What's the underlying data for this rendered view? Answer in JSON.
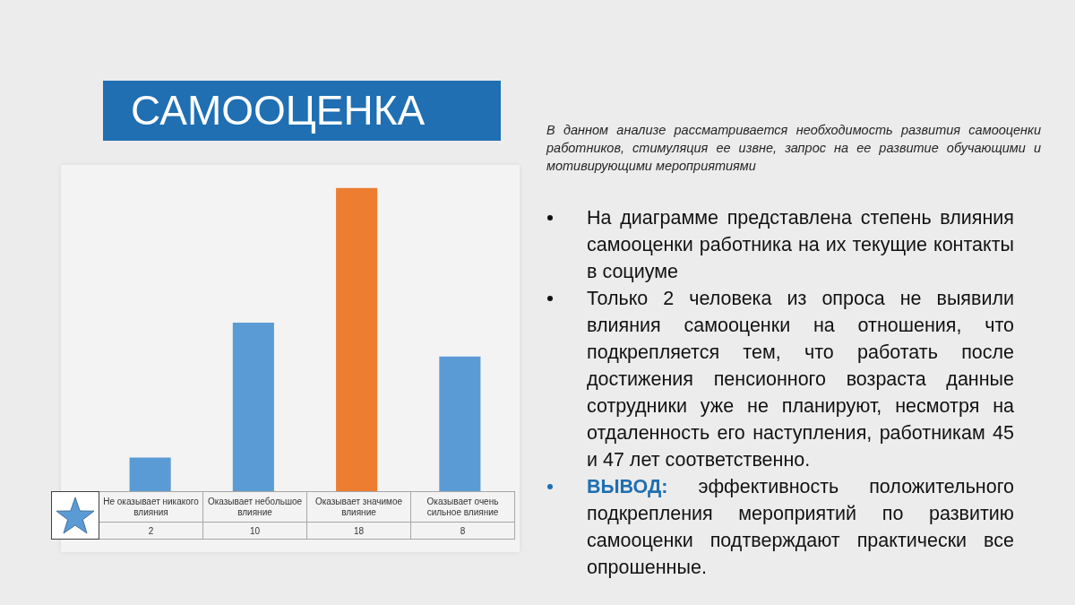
{
  "chart_data": {
    "type": "bar",
    "title": "САМООЦЕНКА",
    "subtitle": "В данном анализе рассматривается необходимость развития самооценки работников, стимуляция ее извне, запрос на ее развитие обучающими и мотивирующими мероприятиями",
    "categories": [
      "Не оказывает никакого влияния",
      "Оказывает небольшое влияние",
      "Оказывает значимое влияние",
      "Оказывает очень сильное влияние"
    ],
    "values": [
      2,
      10,
      18,
      8
    ],
    "colors": [
      "#5b9bd5",
      "#5b9bd5",
      "#ed7d31",
      "#5b9bd5"
    ],
    "data_labels": true,
    "tick_labels": "x",
    "annotations": [
      "На диаграмме представлена степень влияния самооценки работника на их текущие контакты в социуме",
      "Только 2 человека из опроса не выявили влияния самооценки на отношения, что подкрепляется тем, что работать после достижения пенсионного возраста данные сотрудники уже не планируют, несмотря на отдаленность его наступления, работникам 45 и 47 лет соответственно.",
      "ВЫВОД: эффективность положительного подкрепления мероприятий по развитию самооценки подтверждают практически все опрошенные."
    ]
  }
}
